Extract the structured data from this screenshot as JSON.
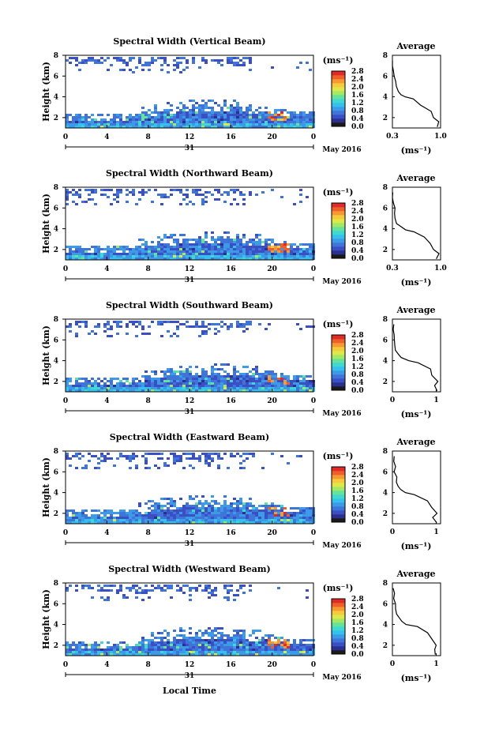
{
  "colors": {
    "colorbar": [
      "#1a1a1a",
      "#2b2f8f",
      "#3b4fc4",
      "#3f74d8",
      "#3d9ae6",
      "#35c0ee",
      "#40d8d0",
      "#66e39a",
      "#a5e866",
      "#dfe84a",
      "#f7c93c",
      "#f59a33",
      "#ef5f2a",
      "#e02a25"
    ],
    "echo_low": "#3f5ed8",
    "echo_mid": "#3fb6ee",
    "echo_high": "#e83a2a",
    "profile_line": "#000000"
  },
  "axis_labels": {
    "height_label": "Height (km)",
    "colorbar_unit": "(ms⁻¹)",
    "date_label": "31",
    "month_label": "May 2016",
    "local_time_label": "Local Time",
    "average_title": "Average",
    "average_xlabel": "(ms⁻¹)"
  },
  "chart_data": [
    {
      "type": "heatmap",
      "title": "Spectral Width (Vertical Beam)",
      "xlabel": "",
      "ylabel": "Height (km)",
      "xlim": [
        0,
        24
      ],
      "ylim": [
        1,
        8
      ],
      "x_ticks": [
        "0",
        "4",
        "8",
        "12",
        "16",
        "20",
        "0"
      ],
      "y_ticks": [
        "2",
        "4",
        "6",
        "8"
      ],
      "colorbar_ticks": [
        "0.0",
        "0.4",
        "0.8",
        "1.2",
        "1.6",
        "2.0",
        "2.4",
        "2.8"
      ],
      "colorbar_range": [
        0,
        2.8
      ],
      "profile": {
        "title": "Average",
        "xlim": [
          0.3,
          1.0
        ],
        "ylim": [
          1,
          8
        ],
        "x_ticks": [
          "0.3",
          "1.0"
        ],
        "y_ticks": [
          "2",
          "4",
          "6",
          "8"
        ],
        "x": [
          0.95,
          0.97,
          0.9,
          0.86,
          0.72,
          0.6,
          0.5,
          0.42,
          0.38,
          0.36,
          0.34,
          0.33,
          0.32,
          0.31,
          0.3
        ],
        "height": [
          1.1,
          1.6,
          2.0,
          2.6,
          3.2,
          3.8,
          4.0,
          4.2,
          4.5,
          5.0,
          5.5,
          6.0,
          6.5,
          7.0,
          7.5
        ]
      }
    },
    {
      "type": "heatmap",
      "title": "Spectral Width (Northward Beam)",
      "xlabel": "",
      "ylabel": "Height (km)",
      "xlim": [
        0,
        24
      ],
      "ylim": [
        1,
        8
      ],
      "x_ticks": [
        "0",
        "4",
        "8",
        "12",
        "16",
        "20",
        "0"
      ],
      "y_ticks": [
        "2",
        "4",
        "6",
        "8"
      ],
      "colorbar_ticks": [
        "0.0",
        "0.4",
        "0.8",
        "1.2",
        "1.6",
        "2.0",
        "2.4",
        "2.8"
      ],
      "colorbar_range": [
        0,
        2.8
      ],
      "profile": {
        "title": "Average",
        "xlim": [
          0.3,
          1.0
        ],
        "ylim": [
          1,
          8
        ],
        "x_ticks": [
          "0.3",
          "1.0"
        ],
        "y_ticks": [
          "2",
          "4",
          "6",
          "8"
        ],
        "x": [
          0.95,
          0.97,
          0.9,
          0.85,
          0.75,
          0.62,
          0.5,
          0.42,
          0.37,
          0.35,
          0.34,
          0.33,
          0.32,
          0.31,
          0.3
        ],
        "height": [
          1.1,
          1.6,
          2.0,
          2.6,
          3.2,
          3.7,
          3.9,
          4.2,
          4.5,
          5.0,
          5.5,
          6.0,
          6.5,
          7.0,
          7.5
        ]
      }
    },
    {
      "type": "heatmap",
      "title": "Spectral Width (Southward Beam)",
      "xlabel": "",
      "ylabel": "Height (km)",
      "xlim": [
        0,
        24
      ],
      "ylim": [
        1,
        8
      ],
      "x_ticks": [
        "0",
        "4",
        "8",
        "12",
        "16",
        "20",
        "0"
      ],
      "y_ticks": [
        "2",
        "4",
        "6",
        "8"
      ],
      "colorbar_ticks": [
        "0.0",
        "0.4",
        "0.8",
        "1.2",
        "1.6",
        "2.0",
        "2.4",
        "2.8"
      ],
      "colorbar_range": [
        0,
        2.8
      ],
      "profile": {
        "title": "Average",
        "xlim": [
          0,
          1.1
        ],
        "ylim": [
          1,
          8
        ],
        "x_ticks": [
          "0",
          "1"
        ],
        "y_ticks": [
          "2",
          "4",
          "6",
          "8"
        ],
        "x": [
          1.0,
          0.95,
          1.02,
          0.92,
          0.85,
          0.6,
          0.35,
          0.2,
          0.12,
          0.08,
          0.06,
          0.05,
          0.04,
          0.03,
          0.02
        ],
        "height": [
          1.1,
          1.6,
          2.0,
          2.6,
          3.2,
          3.8,
          4.0,
          4.3,
          4.6,
          5.0,
          5.5,
          6.0,
          6.5,
          7.0,
          7.5
        ]
      }
    },
    {
      "type": "heatmap",
      "title": "Spectral Width (Eastward Beam)",
      "xlabel": "",
      "ylabel": "Height (km)",
      "xlim": [
        0,
        24
      ],
      "ylim": [
        1,
        8
      ],
      "x_ticks": [
        "0",
        "4",
        "8",
        "12",
        "16",
        "20",
        "0"
      ],
      "y_ticks": [
        "2",
        "4",
        "6",
        "8"
      ],
      "colorbar_ticks": [
        "0.0",
        "0.4",
        "0.8",
        "1.2",
        "1.6",
        "2.0",
        "2.4",
        "2.8"
      ],
      "colorbar_range": [
        0,
        2.8
      ],
      "profile": {
        "title": "Average",
        "xlim": [
          0,
          1.1
        ],
        "ylim": [
          1,
          8
        ],
        "x_ticks": [
          "0",
          "1"
        ],
        "y_ticks": [
          "2",
          "4",
          "6",
          "8"
        ],
        "x": [
          1.0,
          0.92,
          1.0,
          0.9,
          0.8,
          0.5,
          0.3,
          0.2,
          0.14,
          0.1,
          0.08,
          0.06,
          0.05,
          0.04,
          0.03
        ],
        "height": [
          1.1,
          1.6,
          2.0,
          2.6,
          3.2,
          3.8,
          4.0,
          4.3,
          4.6,
          5.0,
          5.5,
          6.0,
          6.5,
          7.0,
          7.5
        ]
      }
    },
    {
      "type": "heatmap",
      "title": "Spectral Width (Westward Beam)",
      "xlabel": "Local Time",
      "ylabel": "Height (km)",
      "xlim": [
        0,
        24
      ],
      "ylim": [
        1,
        8
      ],
      "x_ticks": [
        "0",
        "4",
        "8",
        "12",
        "16",
        "20",
        "0"
      ],
      "y_ticks": [
        "2",
        "4",
        "6",
        "8"
      ],
      "colorbar_ticks": [
        "0.0",
        "0.4",
        "0.8",
        "1.2",
        "1.6",
        "2.0",
        "2.4",
        "2.8"
      ],
      "colorbar_range": [
        0,
        2.8
      ],
      "profile": {
        "title": "Average",
        "xlim": [
          0,
          1.1
        ],
        "ylim": [
          1,
          8
        ],
        "x_ticks": [
          "0",
          "1"
        ],
        "y_ticks": [
          "2",
          "4",
          "6",
          "8"
        ],
        "x": [
          1.0,
          0.95,
          1.02,
          0.9,
          0.8,
          0.55,
          0.32,
          0.22,
          0.15,
          0.1,
          0.08,
          0.06,
          0.05,
          0.04,
          0.03
        ],
        "height": [
          1.1,
          1.6,
          2.0,
          2.6,
          3.2,
          3.8,
          4.0,
          4.3,
          4.6,
          5.0,
          5.5,
          6.0,
          6.5,
          7.0,
          7.5
        ]
      }
    }
  ]
}
